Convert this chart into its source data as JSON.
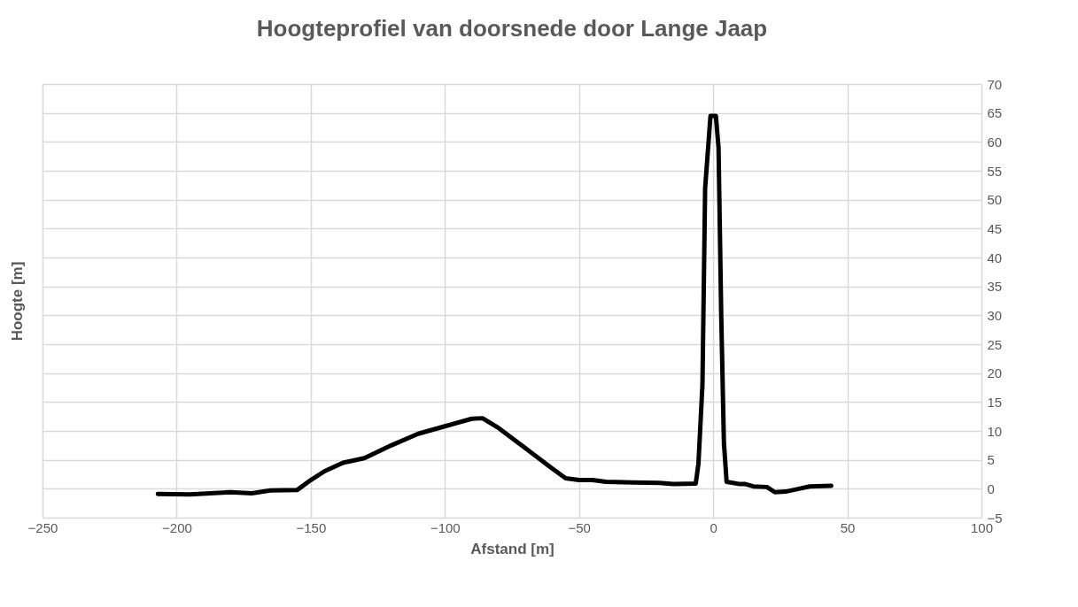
{
  "chart_data": {
    "type": "line",
    "title": "Hoogteprofiel van doorsnede door Lange Jaap",
    "xlabel": "Afstand [m]",
    "ylabel": "Hoogte [m]",
    "xlim": [
      -250,
      100
    ],
    "xticks": [
      -250,
      -200,
      -150,
      -100,
      -50,
      0,
      50,
      100
    ],
    "ylim": [
      -5,
      70
    ],
    "yticks": [
      -5,
      0,
      5,
      10,
      15,
      20,
      25,
      30,
      35,
      40,
      45,
      50,
      55,
      60,
      65,
      70
    ],
    "grid": true,
    "marker": "none",
    "line_style": "solid",
    "x": [
      -207,
      -195,
      -180,
      -172,
      -165,
      -155,
      -150,
      -145,
      -138,
      -130,
      -120,
      -110,
      -100,
      -90,
      -86,
      -80,
      -70,
      -60,
      -55,
      -50,
      -45,
      -40,
      -30,
      -20,
      -15,
      -6.5,
      -5.5,
      -4,
      -3,
      -1,
      1,
      2,
      3,
      4,
      5,
      10,
      12,
      15,
      20,
      23,
      27,
      32,
      36,
      44
    ],
    "series": [
      {
        "color": "#000000",
        "values": [
          -0.9,
          -1.0,
          -0.6,
          -0.8,
          -0.3,
          -0.2,
          1.5,
          3,
          4.5,
          5.3,
          7.5,
          9.5,
          10.8,
          12.1,
          12.2,
          10.5,
          7,
          3.5,
          1.8,
          1.5,
          1.5,
          1.2,
          1.1,
          1.0,
          0.8,
          0.9,
          4.3,
          18,
          52,
          64.5,
          64.5,
          59,
          30,
          8,
          1.2,
          0.8,
          0.8,
          0.4,
          0.3,
          -0.6,
          -0.5,
          0,
          0.4,
          0.5
        ]
      }
    ]
  }
}
